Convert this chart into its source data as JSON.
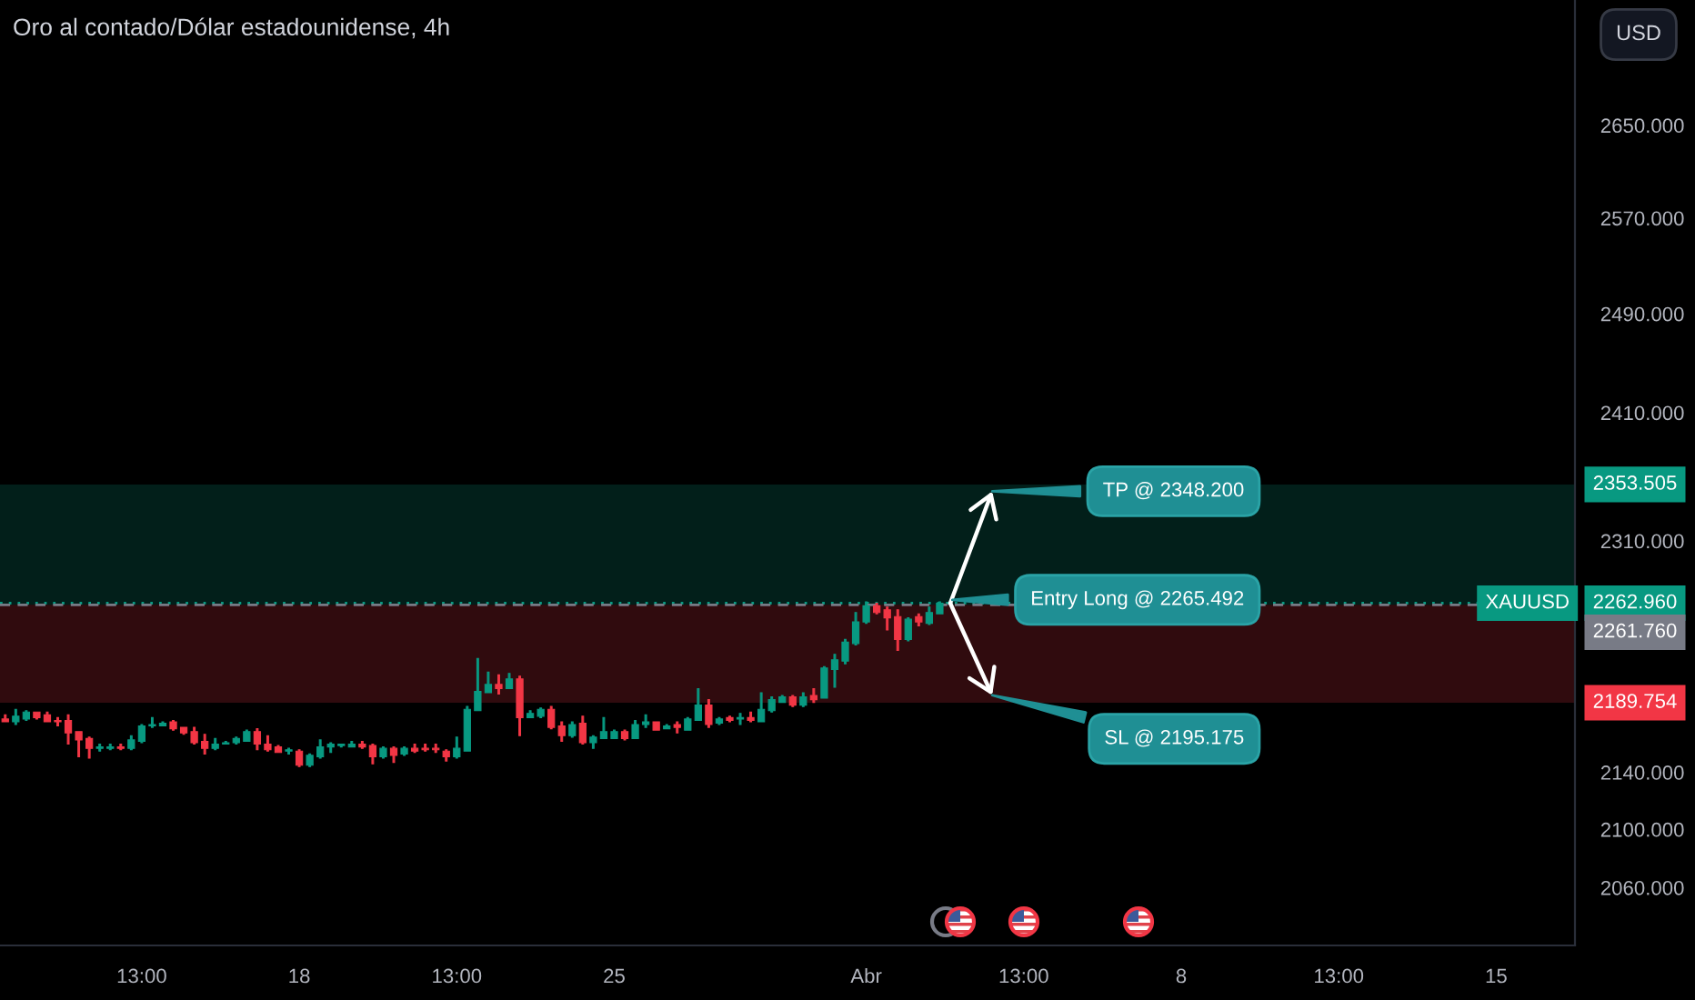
{
  "chart_data": {
    "type": "candlestick",
    "title": "Oro al contado/Dólar estadounidense, 4h",
    "ylabel": "USD",
    "categories": [
      null,
      null,
      null,
      null,
      null,
      null,
      null,
      null,
      null,
      null,
      null,
      null,
      null,
      "13:00",
      null,
      null,
      null,
      null,
      null,
      null,
      null,
      null,
      null,
      null,
      null,
      null,
      null,
      null,
      "18",
      null,
      null,
      null,
      null,
      null,
      null,
      null,
      null,
      null,
      null,
      null,
      null,
      null,
      null,
      "13:00",
      null,
      null,
      null,
      null,
      null,
      null,
      null,
      null,
      null,
      null,
      null,
      null,
      null,
      null,
      "25",
      null,
      null,
      null,
      null,
      null,
      null,
      null,
      null,
      null,
      null,
      null,
      null,
      null,
      null,
      null,
      null,
      null,
      null,
      null,
      null,
      null,
      null,
      null,
      "Abr",
      null,
      null,
      null,
      null,
      null,
      null,
      null,
      null,
      null,
      null,
      null,
      null,
      null,
      null,
      "13:00",
      null,
      null,
      null,
      null,
      null,
      null,
      null,
      null,
      null,
      null,
      null,
      null,
      null,
      null,
      "8",
      null,
      null,
      null,
      null,
      null,
      null,
      null,
      null,
      null,
      null,
      null,
      null,
      null,
      null,
      "13:00",
      null,
      null,
      null,
      null,
      null,
      null,
      null,
      null,
      null,
      null,
      null,
      null,
      null,
      null,
      "15",
      null,
      null,
      null,
      null,
      null,
      null,
      null
    ],
    "series": [
      {
        "name": "XAUUSD",
        "ohlc": [
          [
            2178,
            2181,
            2176,
            2176
          ],
          [
            2176,
            2185,
            2174,
            2180
          ],
          [
            2178,
            2184,
            2177,
            2183
          ],
          [
            2183,
            2183,
            2178,
            2179
          ],
          [
            2181,
            2183,
            2176,
            2176
          ],
          [
            2177,
            2179,
            2173,
            2176
          ],
          [
            2177,
            2181,
            2160,
            2168
          ],
          [
            2169,
            2169,
            2151,
            2163
          ],
          [
            2164,
            2165,
            2150,
            2157
          ],
          [
            2157,
            2160,
            2155,
            2158
          ],
          [
            2157,
            2160,
            2156,
            2158
          ],
          [
            2158,
            2160,
            2156,
            2157
          ],
          [
            2157,
            2166,
            2156,
            2163
          ],
          [
            2162,
            2174,
            2161,
            2173
          ],
          [
            2173,
            2179,
            2172,
            2174
          ],
          [
            2173,
            2176,
            2173,
            2175
          ],
          [
            2176,
            2177,
            2170,
            2171
          ],
          [
            2172,
            2172,
            2167,
            2168
          ],
          [
            2169,
            2172,
            2160,
            2161
          ],
          [
            2162,
            2167,
            2153,
            2157
          ],
          [
            2157,
            2164,
            2156,
            2160
          ],
          [
            2160,
            2162,
            2160,
            2161
          ],
          [
            2161,
            2165,
            2160,
            2164
          ],
          [
            2162,
            2170,
            2162,
            2169
          ],
          [
            2169,
            2171,
            2156,
            2160
          ],
          [
            2160,
            2166,
            2155,
            2156
          ],
          [
            2158,
            2159,
            2154,
            2154
          ],
          [
            2155,
            2157,
            2153,
            2156
          ],
          [
            2155,
            2156,
            2144,
            2145
          ],
          [
            2145,
            2153,
            2144,
            2152
          ],
          [
            2151,
            2163,
            2150,
            2158
          ],
          [
            2158,
            2161,
            2154,
            2160
          ],
          [
            2159,
            2160,
            2158,
            2160
          ],
          [
            2158,
            2162,
            2158,
            2160
          ],
          [
            2160,
            2162,
            2157,
            2158
          ],
          [
            2159,
            2160,
            2146,
            2151
          ],
          [
            2151,
            2158,
            2150,
            2157
          ],
          [
            2157,
            2158,
            2147,
            2152
          ],
          [
            2153,
            2158,
            2152,
            2157
          ],
          [
            2157,
            2160,
            2154,
            2155
          ],
          [
            2157,
            2160,
            2155,
            2156
          ],
          [
            2157,
            2160,
            2154,
            2156
          ],
          [
            2155,
            2156,
            2148,
            2151
          ],
          [
            2151,
            2165,
            2150,
            2157
          ],
          [
            2155,
            2187,
            2155,
            2185
          ],
          [
            2184,
            2222,
            2184,
            2198
          ],
          [
            2197,
            2212,
            2197,
            2203
          ],
          [
            2203,
            2210,
            2196,
            2200
          ],
          [
            2200,
            2211,
            2200,
            2207
          ],
          [
            2207,
            2209,
            2166,
            2179
          ],
          [
            2179,
            2184,
            2179,
            2182
          ],
          [
            2180,
            2186,
            2179,
            2185
          ],
          [
            2185,
            2187,
            2171,
            2172
          ],
          [
            2173,
            2176,
            2162,
            2166
          ],
          [
            2166,
            2176,
            2165,
            2174
          ],
          [
            2175,
            2180,
            2160,
            2161
          ],
          [
            2161,
            2166,
            2157,
            2165
          ],
          [
            2164,
            2179,
            2164,
            2169
          ],
          [
            2164,
            2170,
            2164,
            2169
          ],
          [
            2169,
            2170,
            2163,
            2164
          ],
          [
            2164,
            2177,
            2164,
            2174
          ],
          [
            2174,
            2181,
            2172,
            2176
          ],
          [
            2176,
            2176,
            2170,
            2170
          ],
          [
            2171,
            2174,
            2171,
            2173
          ],
          [
            2174,
            2176,
            2168,
            2172
          ],
          [
            2170,
            2179,
            2170,
            2178
          ],
          [
            2177,
            2200,
            2177,
            2188
          ],
          [
            2188,
            2192,
            2172,
            2174
          ],
          [
            2175,
            2179,
            2174,
            2178
          ],
          [
            2179,
            2180,
            2176,
            2177
          ],
          [
            2178,
            2182,
            2174,
            2179
          ],
          [
            2179,
            2183,
            2176,
            2177
          ],
          [
            2176,
            2197,
            2176,
            2185
          ],
          [
            2184,
            2194,
            2183,
            2192
          ],
          [
            2190,
            2195,
            2190,
            2194
          ],
          [
            2194,
            2195,
            2187,
            2188
          ],
          [
            2188,
            2197,
            2187,
            2194
          ],
          [
            2195,
            2200,
            2190,
            2192
          ],
          [
            2193,
            2216,
            2193,
            2215
          ],
          [
            2214,
            2225,
            2201,
            2221
          ],
          [
            2220,
            2236,
            2218,
            2234
          ],
          [
            2233,
            2256,
            2232,
            2249
          ],
          [
            2249,
            2264,
            2248,
            2261
          ],
          [
            2261,
            2263,
            2255,
            2256
          ],
          [
            2258,
            2260,
            2243,
            2252
          ],
          [
            2253,
            2258,
            2228,
            2236
          ],
          [
            2236,
            2252,
            2235,
            2251
          ],
          [
            2253,
            2255,
            2246,
            2249
          ],
          [
            2248,
            2260,
            2247,
            2256
          ],
          [
            2255,
            2264,
            2255,
            2262.96
          ],
          null,
          null,
          null,
          null,
          null,
          null,
          null,
          null,
          null,
          null,
          null,
          null,
          null,
          null,
          null,
          null,
          null,
          null,
          null,
          null,
          null,
          null,
          null,
          null,
          null,
          null,
          null,
          null,
          null,
          null,
          null,
          null,
          null,
          null,
          null,
          null,
          null,
          null,
          null,
          null,
          null,
          null,
          null,
          null,
          null,
          null,
          null,
          null,
          null,
          null,
          null,
          null,
          null,
          null,
          null,
          null,
          null,
          null,
          null,
          null
        ],
        "colors": [
          "#f23645",
          "#089981",
          "#089981",
          "#f23645",
          "#f23645",
          "#f23645",
          "#f23645",
          "#f23645",
          "#f23645",
          "#089981",
          "#089981",
          "#f23645",
          "#089981",
          "#089981",
          "#089981",
          "#089981",
          "#f23645",
          "#f23645",
          "#f23645",
          "#f23645",
          "#089981",
          "#089981",
          "#089981",
          "#089981",
          "#f23645",
          "#f23645",
          "#f23645",
          "#089981",
          "#f23645",
          "#089981",
          "#089981",
          "#089981",
          "#089981",
          "#089981",
          "#f23645",
          "#f23645",
          "#089981",
          "#f23645",
          "#089981",
          "#f23645",
          "#f23645",
          "#f23645",
          "#f23645",
          "#089981",
          "#089981",
          "#089981",
          "#089981",
          "#f23645",
          "#089981",
          "#f23645",
          "#089981",
          "#089981",
          "#f23645",
          "#f23645",
          "#089981",
          "#f23645",
          "#089981",
          "#089981",
          "#089981",
          "#f23645",
          "#089981",
          "#089981",
          "#f23645",
          "#089981",
          "#f23645",
          "#089981",
          "#089981",
          "#f23645",
          "#089981",
          "#f23645",
          "#089981",
          "#f23645",
          "#089981",
          "#089981",
          "#089981",
          "#f23645",
          "#089981",
          "#f23645",
          "#089981",
          "#089981",
          "#089981",
          "#089981",
          "#089981",
          "#f23645",
          "#f23645",
          "#f23645",
          "#089981",
          "#f23645",
          "#089981",
          "#089981",
          null,
          null,
          null,
          null,
          null,
          null,
          null,
          null,
          null,
          null,
          null,
          null,
          null,
          null,
          null,
          null,
          null,
          null,
          null,
          null,
          null,
          null,
          null,
          null,
          null,
          null,
          null,
          null,
          null,
          null,
          null,
          null,
          null,
          null,
          null,
          null,
          null,
          null,
          null,
          null,
          null,
          null,
          null,
          null,
          null,
          null,
          null,
          null,
          null,
          null,
          null,
          null,
          null,
          null,
          null,
          null,
          null,
          null,
          null,
          null
        ]
      }
    ],
    "log": "y",
    "ylim": [
      2021,
      2762
    ],
    "yticks": [
      {
        "value": 2650,
        "label": "2650.000"
      },
      {
        "value": 2570,
        "label": "2570.000"
      },
      {
        "value": 2490,
        "label": "2490.000"
      },
      {
        "value": 2410,
        "label": "2410.000"
      },
      {
        "value": 2310,
        "label": "2310.000"
      },
      {
        "value": 2140,
        "label": "2140.000"
      },
      {
        "value": 2100,
        "label": "2100.000"
      },
      {
        "value": 2060,
        "label": "2060.000"
      }
    ],
    "bands": [
      {
        "axis": "y",
        "from": 2261.76,
        "to": 2353.505,
        "label": "2353.505",
        "color": "#089981"
      },
      {
        "axis": "y",
        "from": 2261.76,
        "to": 2189.754,
        "label": "2189.754",
        "color": "#f23645"
      }
    ],
    "ref_lines": [
      {
        "axis": "y",
        "value": 2262.96,
        "label": "2262.960",
        "color": "#089981",
        "line_style": "dotted"
      },
      {
        "axis": "y",
        "value": 2261.76,
        "label": "2261.760",
        "color": "#787b86",
        "line_style": "dashed"
      }
    ],
    "annotations": [
      {
        "text": "TP @ 2348.200",
        "y": 2348.2
      },
      {
        "text": "Entry Long @ 2265.492",
        "y": 2265.492
      },
      {
        "text": "SL @ 2195.175",
        "y": 2195.175
      }
    ]
  }
}
